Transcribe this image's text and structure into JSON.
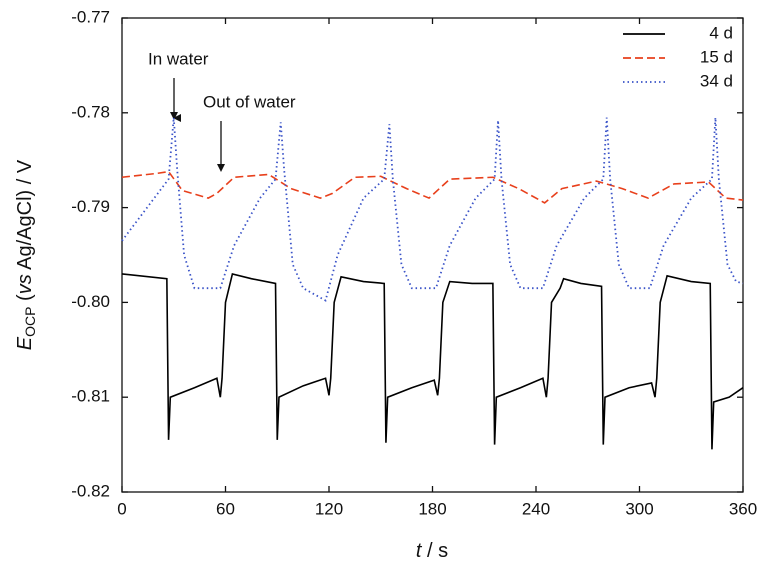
{
  "chart_data": {
    "type": "line",
    "xlabel": {
      "symbol": "t",
      "text": " / s"
    },
    "ylabel": {
      "symbol": "E",
      "subscript": "OCP",
      "pre": " (",
      "italic": "vs",
      "post": " Ag/AgCl) / V"
    },
    "annotations": [
      "In water",
      "Out of water"
    ],
    "xlim": [
      0,
      360
    ],
    "xticks": [
      0,
      60,
      120,
      180,
      240,
      300,
      360
    ],
    "ylim": [
      -0.82,
      -0.77
    ],
    "yticks": [
      -0.82,
      -0.81,
      {
        "value": -0.8,
        "label": "-0.80"
      },
      -0.79,
      -0.78,
      -0.77
    ],
    "legend": "upper right",
    "series": [
      {
        "name": "4 d",
        "color": "#000000",
        "dash": "solid",
        "x": [
          0,
          26,
          27,
          28,
          42,
          55,
          57,
          58,
          60,
          64,
          75,
          89,
          90,
          91,
          105,
          118,
          120,
          121,
          123,
          127,
          140,
          152,
          153,
          154,
          168,
          181,
          183,
          184,
          186,
          190,
          203,
          215,
          216,
          217,
          231,
          244,
          246,
          247,
          249,
          254,
          256,
          266,
          278,
          279,
          280,
          294,
          307,
          309,
          310,
          312,
          316,
          330,
          341,
          342,
          343,
          352,
          360
        ],
        "values": [
          -0.797,
          -0.7975,
          -0.8145,
          -0.81,
          -0.809,
          -0.808,
          -0.81,
          -0.808,
          -0.8,
          -0.797,
          -0.7975,
          -0.798,
          -0.8145,
          -0.81,
          -0.8088,
          -0.808,
          -0.8098,
          -0.808,
          -0.8,
          -0.7973,
          -0.7978,
          -0.798,
          -0.8148,
          -0.81,
          -0.809,
          -0.8082,
          -0.8098,
          -0.808,
          -0.8,
          -0.7978,
          -0.798,
          -0.798,
          -0.815,
          -0.81,
          -0.809,
          -0.808,
          -0.81,
          -0.808,
          -0.8,
          -0.7985,
          -0.7975,
          -0.798,
          -0.7983,
          -0.815,
          -0.81,
          -0.809,
          -0.8085,
          -0.81,
          -0.808,
          -0.8,
          -0.7972,
          -0.7978,
          -0.798,
          -0.8155,
          -0.8105,
          -0.81,
          -0.809
        ]
      },
      {
        "name": "15 d",
        "color": "#e8401c",
        "dash": "dashed",
        "x": [
          0,
          20,
          27,
          35,
          50,
          55,
          65,
          85,
          98,
          115,
          122,
          135,
          150,
          165,
          178,
          190,
          215,
          230,
          245,
          255,
          275,
          290,
          305,
          320,
          340,
          350,
          360
        ],
        "values": [
          -0.7868,
          -0.7864,
          -0.7862,
          -0.7882,
          -0.789,
          -0.7885,
          -0.7868,
          -0.7865,
          -0.788,
          -0.789,
          -0.7885,
          -0.7868,
          -0.7867,
          -0.788,
          -0.789,
          -0.787,
          -0.7868,
          -0.788,
          -0.7895,
          -0.788,
          -0.7872,
          -0.788,
          -0.789,
          -0.7875,
          -0.7873,
          -0.789,
          -0.7892
        ]
      },
      {
        "name": "34 d",
        "color": "#3a53c8",
        "dash": "dotted",
        "x": [
          0,
          27,
          30,
          32,
          36,
          42,
          57,
          65,
          80,
          89,
          92,
          94,
          99,
          105,
          118,
          125,
          140,
          152,
          155,
          157,
          162,
          168,
          182,
          190,
          205,
          216,
          218,
          220,
          225,
          231,
          244,
          252,
          268,
          279,
          281,
          283,
          288,
          294,
          306,
          314,
          330,
          342,
          344,
          346,
          351,
          356,
          360
        ],
        "values": [
          -0.7935,
          -0.787,
          -0.7805,
          -0.786,
          -0.795,
          -0.7985,
          -0.7985,
          -0.794,
          -0.789,
          -0.787,
          -0.781,
          -0.786,
          -0.796,
          -0.7985,
          -0.7998,
          -0.795,
          -0.789,
          -0.787,
          -0.7812,
          -0.787,
          -0.796,
          -0.7985,
          -0.7985,
          -0.794,
          -0.789,
          -0.787,
          -0.7808,
          -0.787,
          -0.796,
          -0.7985,
          -0.7985,
          -0.794,
          -0.789,
          -0.787,
          -0.7805,
          -0.787,
          -0.796,
          -0.7985,
          -0.7985,
          -0.794,
          -0.789,
          -0.787,
          -0.7805,
          -0.787,
          -0.796,
          -0.7978,
          -0.798
        ]
      }
    ]
  }
}
